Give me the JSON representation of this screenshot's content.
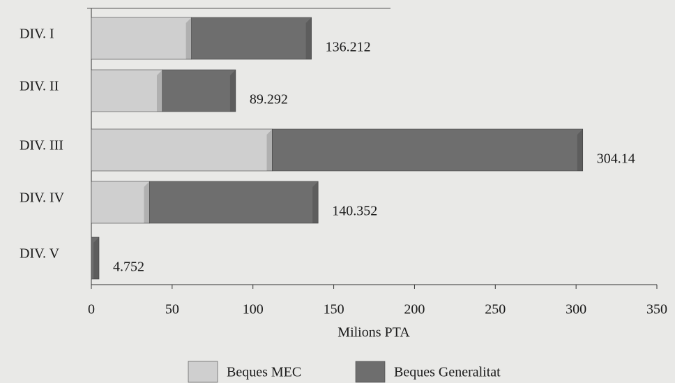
{
  "chart_data": {
    "type": "bar",
    "orientation": "horizontal",
    "stacked": true,
    "categories": [
      "DIV. I",
      "DIV. II",
      "DIV. III",
      "DIV. IV",
      "DIV. V"
    ],
    "series": [
      {
        "name": "Beques MEC",
        "color": "#cfcfcf",
        "values": [
          62,
          44,
          112,
          36,
          0
        ]
      },
      {
        "name": "Beques Generalitat",
        "color": "#6e6e6e",
        "values": [
          74.212,
          45.292,
          192.14,
          104.352,
          4.752
        ]
      }
    ],
    "totals": [
      136.212,
      89.292,
      304.14,
      140.352,
      4.752
    ],
    "xlabel": "Milions PTA",
    "xlim": [
      0,
      350
    ],
    "xticks": [
      0,
      50,
      100,
      150,
      200,
      250,
      300,
      350
    ],
    "legend": "bottom"
  }
}
